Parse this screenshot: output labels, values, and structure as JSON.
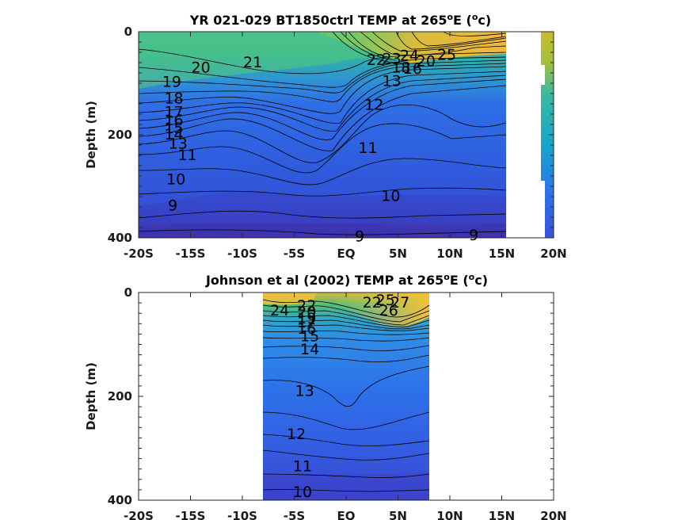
{
  "chart_data": [
    {
      "type": "heatmap",
      "title_main": "YR 021-029 BT1850ctrl TEMP at 265",
      "title_sup": "o",
      "title_mid": "E (",
      "title_unit": "c",
      "title_end": ")",
      "ylabel": "Depth (m)",
      "xlabel": "",
      "xlim": [
        -20,
        20
      ],
      "ylim": [
        0,
        400
      ],
      "y_reversed": true,
      "x_ticks": [
        "-20S",
        "-15S",
        "-10S",
        "-5S",
        "EQ",
        "5N",
        "10N",
        "15N",
        "20N"
      ],
      "y_ticks": [
        "0",
        "200",
        "400"
      ],
      "colormap": "parula",
      "data_extent": [
        [
          -20,
          15
        ],
        [
          19,
          20
        ]
      ],
      "contour_labels": [
        {
          "text": "20",
          "x": -14,
          "y": 70
        },
        {
          "text": "21",
          "x": -9,
          "y": 60
        },
        {
          "text": "19",
          "x": -16.8,
          "y": 98
        },
        {
          "text": "18",
          "x": -16.6,
          "y": 130
        },
        {
          "text": "17",
          "x": -16.6,
          "y": 156
        },
        {
          "text": "16",
          "x": -16.6,
          "y": 172
        },
        {
          "text": "15",
          "x": -16.6,
          "y": 188
        },
        {
          "text": "14",
          "x": -16.6,
          "y": 200
        },
        {
          "text": "13",
          "x": -16.2,
          "y": 218
        },
        {
          "text": "11",
          "x": -15.3,
          "y": 240
        },
        {
          "text": "10",
          "x": -16.4,
          "y": 287
        },
        {
          "text": "9",
          "x": -16.7,
          "y": 338
        },
        {
          "text": "12",
          "x": 2.7,
          "y": 142
        },
        {
          "text": "11",
          "x": 2.1,
          "y": 226
        },
        {
          "text": "10",
          "x": 4.3,
          "y": 319
        },
        {
          "text": "9",
          "x": 1.3,
          "y": 398
        },
        {
          "text": "9",
          "x": 12.3,
          "y": 395
        },
        {
          "text": "13",
          "x": 4.4,
          "y": 96
        },
        {
          "text": "25",
          "x": 9.7,
          "y": 45
        },
        {
          "text": "24",
          "x": 6.1,
          "y": 47
        },
        {
          "text": "23",
          "x": 4.4,
          "y": 53
        },
        {
          "text": "22",
          "x": 2.9,
          "y": 55
        },
        {
          "text": "20",
          "x": 7.7,
          "y": 58
        },
        {
          "text": "18",
          "x": 5.3,
          "y": 70
        },
        {
          "text": "16",
          "x": 6.4,
          "y": 72
        }
      ]
    },
    {
      "type": "heatmap",
      "title_main": "Johnson et al (2002) TEMP at 265",
      "title_sup": "o",
      "title_mid": "E (",
      "title_unit": "c",
      "title_end": ")",
      "ylabel": "Depth (m)",
      "xlabel": "",
      "xlim": [
        -20,
        20
      ],
      "ylim": [
        0,
        400
      ],
      "y_reversed": true,
      "x_ticks": [
        "-20S",
        "-15S",
        "-10S",
        "-5S",
        "EQ",
        "5N",
        "10N",
        "15N",
        "20N"
      ],
      "y_ticks": [
        "0",
        "200",
        "400"
      ],
      "colormap": "parula",
      "data_extent": [
        [
          -8,
          8
        ]
      ],
      "contour_labels": [
        {
          "text": "24",
          "x": -6.4,
          "y": 35
        },
        {
          "text": "22",
          "x": -3.8,
          "y": 26
        },
        {
          "text": "20",
          "x": -3.8,
          "y": 38
        },
        {
          "text": "19",
          "x": -3.8,
          "y": 50
        },
        {
          "text": "17",
          "x": -3.8,
          "y": 58
        },
        {
          "text": "16",
          "x": -3.8,
          "y": 70
        },
        {
          "text": "15",
          "x": -3.5,
          "y": 85
        },
        {
          "text": "14",
          "x": -3.5,
          "y": 110
        },
        {
          "text": "13",
          "x": -4.0,
          "y": 190
        },
        {
          "text": "12",
          "x": -4.8,
          "y": 273
        },
        {
          "text": "11",
          "x": -4.2,
          "y": 335
        },
        {
          "text": "10",
          "x": -4.2,
          "y": 385
        },
        {
          "text": "22",
          "x": 2.5,
          "y": 20
        },
        {
          "text": "25",
          "x": 3.8,
          "y": 15
        },
        {
          "text": "26",
          "x": 4.1,
          "y": 35
        },
        {
          "text": "27",
          "x": 5.2,
          "y": 20
        }
      ]
    }
  ]
}
